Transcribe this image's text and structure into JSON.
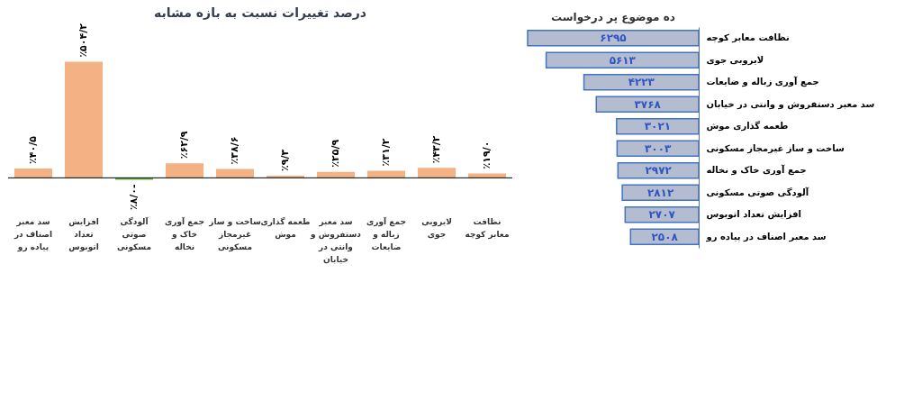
{
  "chart_data": [
    {
      "type": "bar",
      "title": "درصد تغییرات نسبت به بازه مشابه",
      "categories": [
        "سد معبر اصناف در پیاده رو",
        "افزایش تعداد اتوبوس",
        "آلودگی صوتی مسکونی",
        "جمع آوری خاک و نخاله",
        "ساخت و ساز غیرمجاز مسکونی",
        "طعمه گذاری موش",
        "سد معبر دستفروش و وانتی در خیابان",
        "جمع آوری زباله و ضایعات",
        "لایروبی جوی",
        "نظافت معابر کوچه"
      ],
      "values": [
        40.5,
        504.2,
        -8.0,
        62.9,
        38.6,
        9.3,
        25.9,
        31.2,
        43.2,
        19.0
      ],
      "value_labels": [
        "٪۴۰/۵",
        "٪۵۰۴/۲",
        "٪۸/۰-",
        "٪۶۲/۹",
        "٪۳۸/۶",
        "٪۹/۳",
        "٪۲۵/۹",
        "٪۳۱/۲",
        "٪۴۳/۲",
        "٪۱۹/۰"
      ],
      "colors": [
        "#f4b183",
        "#f4b183",
        "#70ad47",
        "#f4b183",
        "#f4b183",
        "#f4b183",
        "#f4b183",
        "#f4b183",
        "#f4b183",
        "#f4b183"
      ]
    },
    {
      "type": "bar",
      "orientation": "horizontal",
      "title": "ده موضوع پر درخواست",
      "categories": [
        "نظافت معابر کوچه",
        "لایروبی جوی",
        "جمع آوری زباله و ضایعات",
        "سد معبر دستفروش و وانتی در خیابان",
        "طعمه گذاری موش",
        "ساخت و ساز غیرمجاز مسکونی",
        "جمع آوری خاک و نخاله",
        "آلودگی صوتی مسکونی",
        "افزایش تعداد اتوبوس",
        "سد معبر اصناف در پیاده رو"
      ],
      "values": [
        6295,
        5613,
        4223,
        3768,
        3021,
        3003,
        2972,
        2812,
        2707,
        2508
      ],
      "value_labels": [
        "۶۲۹۵",
        "۵۶۱۳",
        "۴۲۲۳",
        "۳۷۶۸",
        "۳۰۲۱",
        "۳۰۰۳",
        "۲۹۷۲",
        "۲۸۱۲",
        "۲۷۰۷",
        "۲۵۰۸"
      ],
      "color": "#b4bdd0"
    }
  ]
}
